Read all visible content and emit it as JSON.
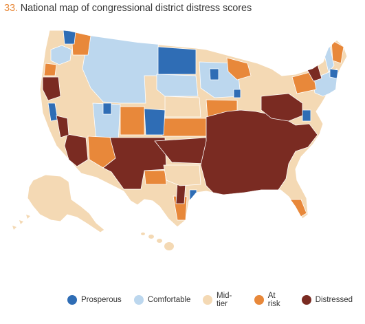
{
  "title": {
    "number": "33.",
    "text": "National map of congressional district distress scores"
  },
  "colors": {
    "prosperous": "#2f6db5",
    "comfortable": "#bcd7ee",
    "mid_tier": "#f4d9b4",
    "at_risk": "#e8883a",
    "distressed": "#7a2b22"
  },
  "legend": [
    {
      "label": "Prosperous",
      "color": "#2f6db5"
    },
    {
      "label": "Comfortable",
      "color": "#bcd7ee"
    },
    {
      "label": "Mid-tier",
      "color": "#f4d9b4"
    },
    {
      "label": "At risk",
      "color": "#e8883a"
    },
    {
      "label": "Distressed",
      "color": "#7a2b22"
    }
  ]
}
